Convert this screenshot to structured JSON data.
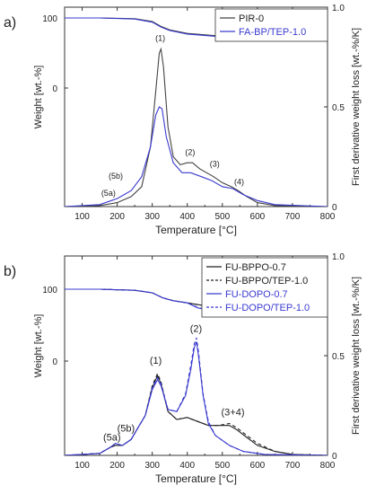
{
  "chart_data": [
    {
      "panel_label": "a)",
      "type": "line",
      "xlabel": "Temperature [°C]",
      "ylabel": "Weight [wt.-%]",
      "y2label": "First derivative weight loss [wt.-%/K]",
      "xlim": [
        50,
        800
      ],
      "x_ticks": [
        "100",
        "200",
        "300",
        "400",
        "500",
        "600",
        "700",
        "800"
      ],
      "y_ticks": [
        "100",
        "0"
      ],
      "y2lim": [
        0,
        1.0
      ],
      "y2_ticks": [
        "1.0",
        "0.5",
        "0"
      ],
      "grid": false,
      "legend_position": "top-right",
      "legend": [
        {
          "name": "PIR-0",
          "color": "#444444",
          "dash": "solid"
        },
        {
          "name": "FA-BP/TEP-1.0",
          "color": "#3a3ad0",
          "dash": "solid"
        }
      ],
      "weight_series": [
        {
          "name": "PIR-0",
          "color": "#444444",
          "dash": "solid",
          "points": [
            [
              50,
              100
            ],
            [
              150,
              100
            ],
            [
              250,
              99
            ],
            [
              300,
              95
            ],
            [
              325,
              88
            ],
            [
              350,
              83
            ],
            [
              400,
              78
            ],
            [
              500,
              74
            ],
            [
              600,
              72
            ],
            [
              700,
              71
            ],
            [
              800,
              70
            ]
          ]
        },
        {
          "name": "FA-BP/TEP-1.0",
          "color": "#3a3ad0",
          "dash": "solid",
          "points": [
            [
              50,
              100
            ],
            [
              150,
              100
            ],
            [
              250,
              98.5
            ],
            [
              300,
              94
            ],
            [
              325,
              87
            ],
            [
              350,
              82
            ],
            [
              400,
              77
            ],
            [
              500,
              73
            ],
            [
              600,
              71
            ],
            [
              700,
              70
            ],
            [
              800,
              69
            ]
          ]
        }
      ],
      "derivative_series": [
        {
          "name": "PIR-0",
          "color": "#444444",
          "dash": "solid",
          "points": [
            [
              50,
              0
            ],
            [
              150,
              0.005
            ],
            [
              200,
              0.02
            ],
            [
              240,
              0.05
            ],
            [
              270,
              0.1
            ],
            [
              295,
              0.3
            ],
            [
              310,
              0.58
            ],
            [
              320,
              0.77
            ],
            [
              325,
              0.79
            ],
            [
              332,
              0.7
            ],
            [
              345,
              0.4
            ],
            [
              360,
              0.25
            ],
            [
              380,
              0.21
            ],
            [
              400,
              0.22
            ],
            [
              415,
              0.22
            ],
            [
              435,
              0.19
            ],
            [
              455,
              0.17
            ],
            [
              475,
              0.15
            ],
            [
              500,
              0.12
            ],
            [
              525,
              0.1
            ],
            [
              545,
              0.08
            ],
            [
              570,
              0.05
            ],
            [
              600,
              0.02
            ],
            [
              650,
              0.005
            ],
            [
              800,
              0
            ]
          ]
        },
        {
          "name": "FA-BP/TEP-1.0",
          "color": "#3a3ad0",
          "dash": "solid",
          "points": [
            [
              50,
              0
            ],
            [
              150,
              0.01
            ],
            [
              200,
              0.04
            ],
            [
              240,
              0.08
            ],
            [
              270,
              0.15
            ],
            [
              295,
              0.3
            ],
            [
              310,
              0.46
            ],
            [
              320,
              0.5
            ],
            [
              328,
              0.49
            ],
            [
              340,
              0.35
            ],
            [
              360,
              0.22
            ],
            [
              385,
              0.17
            ],
            [
              410,
              0.17
            ],
            [
              440,
              0.15
            ],
            [
              470,
              0.13
            ],
            [
              500,
              0.1
            ],
            [
              530,
              0.09
            ],
            [
              560,
              0.06
            ],
            [
              600,
              0.03
            ],
            [
              650,
              0.01
            ],
            [
              800,
              0
            ]
          ]
        }
      ],
      "peak_labels": [
        {
          "text": "(1)",
          "x": 323,
          "y": 0.83
        },
        {
          "text": "(2)",
          "x": 408,
          "y": 0.26
        },
        {
          "text": "(3)",
          "x": 478,
          "y": 0.2
        },
        {
          "text": "(4)",
          "x": 548,
          "y": 0.11
        },
        {
          "text": "(5b)",
          "x": 196,
          "y": 0.14
        },
        {
          "text": "(5a)",
          "x": 175,
          "y": 0.055
        }
      ]
    },
    {
      "panel_label": "b)",
      "type": "line",
      "xlabel": "Temperature [°C]",
      "ylabel": "Weight [wt.-%]",
      "y2label": "First derivative weight loss [wt.-%/K]",
      "xlim": [
        50,
        800
      ],
      "x_ticks": [
        "100",
        "200",
        "300",
        "400",
        "500",
        "600",
        "700",
        "800"
      ],
      "y_ticks": [
        "100",
        "0"
      ],
      "y2lim": [
        0,
        1.0
      ],
      "y2_ticks": [
        "1.0",
        "0.5",
        "0"
      ],
      "grid": false,
      "legend_position": "top-right",
      "legend": [
        {
          "name": "FU-BPPO-0.7",
          "color": "#222222",
          "dash": "solid"
        },
        {
          "name": "FU-BPPO/TEP-1.0",
          "color": "#222222",
          "dash": "dashed"
        },
        {
          "name": "FU-DOPO-0.7",
          "color": "#3a3ad0",
          "dash": "solid"
        },
        {
          "name": "FU-DOPO/TEP-1.0",
          "color": "#3a3ad0",
          "dash": "dashed"
        }
      ],
      "weight_series": [
        {
          "name": "FU-BPPO-0.7",
          "color": "#222222",
          "dash": "solid",
          "points": [
            [
              50,
              100
            ],
            [
              150,
              100
            ],
            [
              250,
              98.5
            ],
            [
              300,
              95
            ],
            [
              330,
              88
            ],
            [
              360,
              84
            ],
            [
              400,
              81
            ],
            [
              450,
              77
            ],
            [
              500,
              74
            ],
            [
              550,
              72
            ],
            [
              650,
              71
            ],
            [
              800,
              70
            ]
          ]
        },
        {
          "name": "FU-BPPO/TEP-1.0",
          "color": "#222222",
          "dash": "dashed",
          "points": [
            [
              50,
              100
            ],
            [
              150,
              100
            ],
            [
              250,
              98.5
            ],
            [
              300,
              95
            ],
            [
              330,
              88
            ],
            [
              360,
              84
            ],
            [
              400,
              81
            ],
            [
              450,
              77
            ],
            [
              500,
              74
            ],
            [
              550,
              72.5
            ],
            [
              650,
              71.5
            ],
            [
              800,
              70.5
            ]
          ]
        },
        {
          "name": "FU-DOPO-0.7",
          "color": "#3a3ad0",
          "dash": "solid",
          "points": [
            [
              50,
              100
            ],
            [
              150,
              100
            ],
            [
              250,
              98.5
            ],
            [
              300,
              95
            ],
            [
              330,
              88
            ],
            [
              360,
              84
            ],
            [
              400,
              81
            ],
            [
              430,
              74
            ],
            [
              460,
              71
            ],
            [
              500,
              70
            ],
            [
              600,
              69
            ],
            [
              800,
              68
            ]
          ]
        },
        {
          "name": "FU-DOPO/TEP-1.0",
          "color": "#3a3ad0",
          "dash": "dashed",
          "points": [
            [
              50,
              100
            ],
            [
              150,
              100
            ],
            [
              250,
              98.5
            ],
            [
              300,
              95
            ],
            [
              330,
              88
            ],
            [
              360,
              84
            ],
            [
              400,
              81
            ],
            [
              430,
              74.5
            ],
            [
              460,
              71.5
            ],
            [
              500,
              70.5
            ],
            [
              600,
              69.5
            ],
            [
              800,
              68.5
            ]
          ]
        }
      ],
      "derivative_series": [
        {
          "name": "FU-BPPO-0.7",
          "color": "#222222",
          "dash": "solid",
          "points": [
            [
              50,
              0
            ],
            [
              150,
              0.01
            ],
            [
              180,
              0.04
            ],
            [
              195,
              0.05
            ],
            [
              215,
              0.05
            ],
            [
              240,
              0.08
            ],
            [
              260,
              0.14
            ],
            [
              280,
              0.2
            ],
            [
              300,
              0.34
            ],
            [
              315,
              0.4
            ],
            [
              325,
              0.36
            ],
            [
              345,
              0.22
            ],
            [
              370,
              0.18
            ],
            [
              400,
              0.19
            ],
            [
              430,
              0.17
            ],
            [
              460,
              0.15
            ],
            [
              490,
              0.15
            ],
            [
              520,
              0.15
            ],
            [
              540,
              0.13
            ],
            [
              570,
              0.09
            ],
            [
              600,
              0.05
            ],
            [
              650,
              0.02
            ],
            [
              700,
              0.005
            ],
            [
              800,
              0
            ]
          ]
        },
        {
          "name": "FU-BPPO/TEP-1.0",
          "color": "#222222",
          "dash": "dashed",
          "points": [
            [
              50,
              0
            ],
            [
              150,
              0.01
            ],
            [
              180,
              0.04
            ],
            [
              195,
              0.05
            ],
            [
              215,
              0.05
            ],
            [
              240,
              0.08
            ],
            [
              260,
              0.14
            ],
            [
              280,
              0.2
            ],
            [
              300,
              0.35
            ],
            [
              315,
              0.41
            ],
            [
              325,
              0.37
            ],
            [
              345,
              0.22
            ],
            [
              370,
              0.18
            ],
            [
              400,
              0.19
            ],
            [
              430,
              0.17
            ],
            [
              460,
              0.15
            ],
            [
              490,
              0.15
            ],
            [
              520,
              0.16
            ],
            [
              540,
              0.14
            ],
            [
              570,
              0.1
            ],
            [
              600,
              0.06
            ],
            [
              650,
              0.02
            ],
            [
              700,
              0.005
            ],
            [
              800,
              0
            ]
          ]
        },
        {
          "name": "FU-DOPO-0.7",
          "color": "#3a3ad0",
          "dash": "solid",
          "points": [
            [
              50,
              0
            ],
            [
              150,
              0.01
            ],
            [
              180,
              0.04
            ],
            [
              195,
              0.06
            ],
            [
              215,
              0.05
            ],
            [
              240,
              0.08
            ],
            [
              260,
              0.14
            ],
            [
              280,
              0.2
            ],
            [
              300,
              0.33
            ],
            [
              315,
              0.38
            ],
            [
              325,
              0.35
            ],
            [
              345,
              0.23
            ],
            [
              370,
              0.22
            ],
            [
              395,
              0.3
            ],
            [
              410,
              0.43
            ],
            [
              420,
              0.54
            ],
            [
              426,
              0.57
            ],
            [
              432,
              0.5
            ],
            [
              445,
              0.3
            ],
            [
              460,
              0.16
            ],
            [
              480,
              0.1
            ],
            [
              520,
              0.05
            ],
            [
              560,
              0.02
            ],
            [
              620,
              0.005
            ],
            [
              800,
              0
            ]
          ]
        },
        {
          "name": "FU-DOPO/TEP-1.0",
          "color": "#3a3ad0",
          "dash": "dashed",
          "points": [
            [
              50,
              0
            ],
            [
              150,
              0.01
            ],
            [
              180,
              0.04
            ],
            [
              195,
              0.06
            ],
            [
              215,
              0.05
            ],
            [
              240,
              0.08
            ],
            [
              260,
              0.14
            ],
            [
              280,
              0.2
            ],
            [
              300,
              0.34
            ],
            [
              315,
              0.39
            ],
            [
              325,
              0.36
            ],
            [
              345,
              0.23
            ],
            [
              370,
              0.22
            ],
            [
              395,
              0.31
            ],
            [
              410,
              0.45
            ],
            [
              420,
              0.56
            ],
            [
              426,
              0.59
            ],
            [
              432,
              0.52
            ],
            [
              445,
              0.31
            ],
            [
              460,
              0.17
            ],
            [
              480,
              0.1
            ],
            [
              520,
              0.05
            ],
            [
              560,
              0.02
            ],
            [
              620,
              0.005
            ],
            [
              800,
              0
            ]
          ]
        }
      ],
      "peak_labels": [
        {
          "text": "(1)",
          "x": 310,
          "y": 0.46
        },
        {
          "text": "(2)",
          "x": 425,
          "y": 0.62
        },
        {
          "text": "(3+4)",
          "x": 530,
          "y": 0.2
        },
        {
          "text": "(5b)",
          "x": 225,
          "y": 0.12
        },
        {
          "text": "(5a)",
          "x": 185,
          "y": 0.075
        }
      ]
    }
  ]
}
